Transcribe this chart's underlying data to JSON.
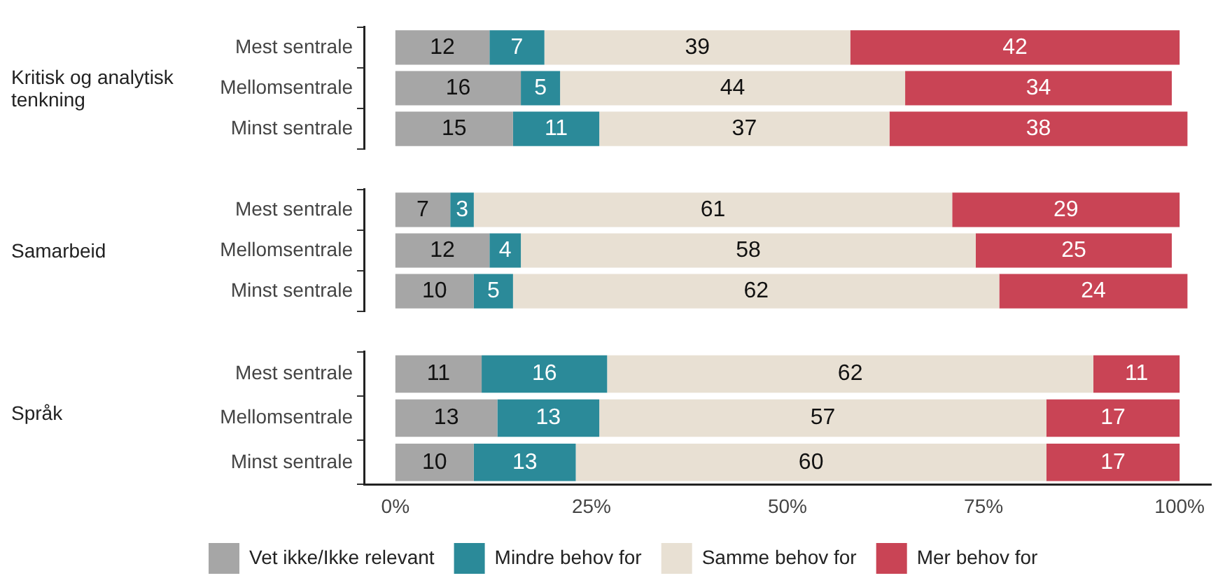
{
  "chart_data": [
    {
      "type": "bar",
      "orientation": "horizontal",
      "stacked": true,
      "ylabel": "Kritisk og analytisk tenkning",
      "categories": [
        "Mest sentrale",
        "Mellomsentrale",
        "Minst sentrale"
      ],
      "series": [
        {
          "color": "#a6a6a6",
          "values": [
            12,
            16,
            15
          ]
        },
        {
          "color": "#2b8a99",
          "values": [
            7,
            5,
            11
          ]
        },
        {
          "color": "#e8e0d3",
          "values": [
            39,
            44,
            37
          ]
        },
        {
          "color": "#c94455",
          "values": [
            42,
            34,
            38
          ]
        }
      ],
      "tick_labels": "y",
      "grid": false,
      "data_labels": true,
      "legend": false
    },
    {
      "type": "bar",
      "orientation": "horizontal",
      "stacked": true,
      "ylabel": "Samarbeid",
      "categories": [
        "Mest sentrale",
        "Mellomsentrale",
        "Minst sentrale"
      ],
      "series": [
        {
          "color": "#a6a6a6",
          "values": [
            7,
            12,
            10
          ]
        },
        {
          "color": "#2b8a99",
          "values": [
            3,
            4,
            5
          ]
        },
        {
          "color": "#e8e0d3",
          "values": [
            61,
            58,
            62
          ]
        },
        {
          "color": "#c94455",
          "values": [
            29,
            25,
            24
          ]
        }
      ],
      "tick_labels": "y",
      "grid": false,
      "data_labels": true,
      "legend": false
    },
    {
      "type": "bar",
      "orientation": "horizontal",
      "stacked": true,
      "ylabel": "Språk",
      "categories": [
        "Mest sentrale",
        "Mellomsentrale",
        "Minst sentrale"
      ],
      "series": [
        {
          "name": "Vet ikke/Ikke relevant",
          "color": "#a6a6a6",
          "values": [
            11,
            13,
            10
          ]
        },
        {
          "name": "Mindre behov for",
          "color": "#2b8a99",
          "values": [
            16,
            13,
            13
          ]
        },
        {
          "name": "Samme behov for",
          "color": "#e8e0d3",
          "values": [
            62,
            57,
            60
          ]
        },
        {
          "name": "Mer behov for",
          "color": "#c94455",
          "values": [
            11,
            17,
            17
          ]
        }
      ],
      "xlim": [
        -4,
        104
      ],
      "xticks": [
        {
          "value": 0,
          "label": "0%"
        },
        {
          "value": 25,
          "label": "25%"
        },
        {
          "value": 50,
          "label": "50%"
        },
        {
          "value": 75,
          "label": "75%"
        },
        {
          "value": 100,
          "label": "100%"
        }
      ],
      "grid": false,
      "data_labels": true,
      "legend": "bottom"
    }
  ]
}
